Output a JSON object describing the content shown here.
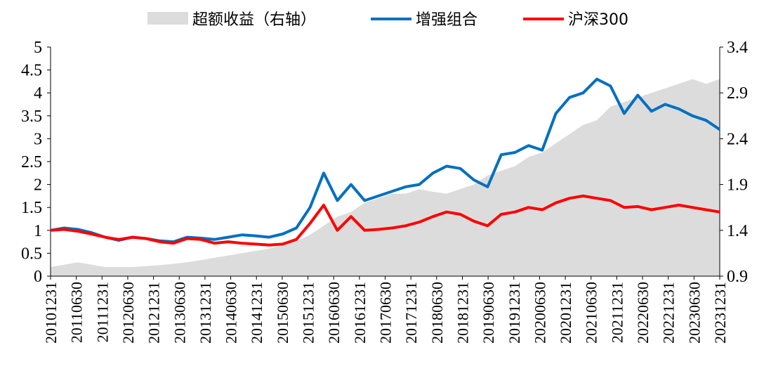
{
  "chart_data": {
    "type": "line",
    "title": "",
    "legend": {
      "position": "top-center",
      "items": [
        {
          "name": "超额收益（右轴）",
          "style": "area",
          "color": "#dcdcdc"
        },
        {
          "name": "增强组合",
          "style": "line",
          "color": "#0070c0"
        },
        {
          "name": "沪深300",
          "style": "line",
          "color": "#ff0000"
        }
      ]
    },
    "x_tick_labels": [
      "20101231",
      "20110630",
      "20111231",
      "20120630",
      "20121231",
      "20130630",
      "20131231",
      "20140630",
      "20141231",
      "20150630",
      "20151231",
      "20160630",
      "20161231",
      "20170630",
      "20171231",
      "20180630",
      "20181231",
      "20190630",
      "20191231",
      "20200630",
      "20201231",
      "20210630",
      "20211231",
      "20220630",
      "20221231",
      "20230630",
      "20231231"
    ],
    "y_left": {
      "min": 0,
      "max": 5,
      "ticks": [
        "0",
        "0.5",
        "1",
        "1.5",
        "2",
        "2.5",
        "3",
        "3.5",
        "4",
        "4.5",
        "5"
      ]
    },
    "y_right": {
      "min": 0.9,
      "max": 3.4,
      "ticks": [
        "0.9",
        "1.4",
        "1.9",
        "2.4",
        "2.9",
        "3.4"
      ]
    },
    "series": [
      {
        "name": "增强组合",
        "axis": "left",
        "color": "#0070c0",
        "points": [
          [
            0,
            1.0
          ],
          [
            1,
            1.05
          ],
          [
            2,
            1.02
          ],
          [
            3,
            0.95
          ],
          [
            4,
            0.85
          ],
          [
            5,
            0.78
          ],
          [
            6,
            0.85
          ],
          [
            7,
            0.82
          ],
          [
            8,
            0.77
          ],
          [
            9,
            0.75
          ],
          [
            10,
            0.85
          ],
          [
            11,
            0.83
          ],
          [
            12,
            0.8
          ],
          [
            13,
            0.85
          ],
          [
            14,
            0.9
          ],
          [
            15,
            0.88
          ],
          [
            16,
            0.85
          ],
          [
            17,
            0.92
          ],
          [
            18,
            1.05
          ],
          [
            19,
            1.5
          ],
          [
            20,
            2.25
          ],
          [
            21,
            1.65
          ],
          [
            22,
            2.0
          ],
          [
            23,
            1.65
          ],
          [
            24,
            1.75
          ],
          [
            25,
            1.85
          ],
          [
            26,
            1.95
          ],
          [
            27,
            2.0
          ],
          [
            28,
            2.25
          ],
          [
            29,
            2.4
          ],
          [
            30,
            2.35
          ],
          [
            31,
            2.1
          ],
          [
            32,
            1.95
          ],
          [
            33,
            2.65
          ],
          [
            34,
            2.7
          ],
          [
            35,
            2.85
          ],
          [
            36,
            2.75
          ],
          [
            37,
            3.55
          ],
          [
            38,
            3.9
          ],
          [
            39,
            4.0
          ],
          [
            40,
            4.3
          ],
          [
            41,
            4.15
          ],
          [
            42,
            3.55
          ],
          [
            43,
            3.95
          ],
          [
            44,
            3.6
          ],
          [
            45,
            3.75
          ],
          [
            46,
            3.65
          ],
          [
            47,
            3.5
          ],
          [
            48,
            3.4
          ],
          [
            49,
            3.2
          ]
        ]
      },
      {
        "name": "沪深300",
        "axis": "left",
        "color": "#ff0000",
        "points": [
          [
            0,
            1.0
          ],
          [
            1,
            1.02
          ],
          [
            2,
            0.98
          ],
          [
            3,
            0.92
          ],
          [
            4,
            0.85
          ],
          [
            5,
            0.8
          ],
          [
            6,
            0.85
          ],
          [
            7,
            0.82
          ],
          [
            8,
            0.75
          ],
          [
            9,
            0.72
          ],
          [
            10,
            0.82
          ],
          [
            11,
            0.8
          ],
          [
            12,
            0.72
          ],
          [
            13,
            0.75
          ],
          [
            14,
            0.72
          ],
          [
            15,
            0.7
          ],
          [
            16,
            0.68
          ],
          [
            17,
            0.7
          ],
          [
            18,
            0.8
          ],
          [
            19,
            1.15
          ],
          [
            20,
            1.55
          ],
          [
            21,
            1.0
          ],
          [
            22,
            1.3
          ],
          [
            23,
            1.0
          ],
          [
            24,
            1.02
          ],
          [
            25,
            1.05
          ],
          [
            26,
            1.1
          ],
          [
            27,
            1.18
          ],
          [
            28,
            1.3
          ],
          [
            29,
            1.4
          ],
          [
            30,
            1.35
          ],
          [
            31,
            1.2
          ],
          [
            32,
            1.1
          ],
          [
            33,
            1.35
          ],
          [
            34,
            1.4
          ],
          [
            35,
            1.5
          ],
          [
            36,
            1.45
          ],
          [
            37,
            1.6
          ],
          [
            38,
            1.7
          ],
          [
            39,
            1.75
          ],
          [
            40,
            1.7
          ],
          [
            41,
            1.65
          ],
          [
            42,
            1.5
          ],
          [
            43,
            1.52
          ],
          [
            44,
            1.45
          ],
          [
            45,
            1.5
          ],
          [
            46,
            1.55
          ],
          [
            47,
            1.5
          ],
          [
            48,
            1.45
          ],
          [
            49,
            1.4
          ]
        ]
      },
      {
        "name": "超额收益（右轴）",
        "axis": "right",
        "color": "#dcdcdc",
        "type": "area",
        "points": [
          [
            0,
            1.0
          ],
          [
            2,
            1.05
          ],
          [
            4,
            1.0
          ],
          [
            6,
            1.0
          ],
          [
            8,
            1.02
          ],
          [
            10,
            1.05
          ],
          [
            12,
            1.1
          ],
          [
            14,
            1.15
          ],
          [
            16,
            1.2
          ],
          [
            18,
            1.28
          ],
          [
            19,
            1.35
          ],
          [
            20,
            1.45
          ],
          [
            21,
            1.55
          ],
          [
            22,
            1.6
          ],
          [
            23,
            1.7
          ],
          [
            24,
            1.75
          ],
          [
            25,
            1.8
          ],
          [
            26,
            1.8
          ],
          [
            27,
            1.85
          ],
          [
            28,
            1.82
          ],
          [
            29,
            1.8
          ],
          [
            30,
            1.85
          ],
          [
            31,
            1.9
          ],
          [
            32,
            2.0
          ],
          [
            33,
            2.05
          ],
          [
            34,
            2.1
          ],
          [
            35,
            2.2
          ],
          [
            36,
            2.25
          ],
          [
            37,
            2.35
          ],
          [
            38,
            2.45
          ],
          [
            39,
            2.55
          ],
          [
            40,
            2.6
          ],
          [
            41,
            2.75
          ],
          [
            42,
            2.8
          ],
          [
            43,
            2.85
          ],
          [
            44,
            2.9
          ],
          [
            45,
            2.95
          ],
          [
            46,
            3.0
          ],
          [
            47,
            3.05
          ],
          [
            48,
            3.0
          ],
          [
            49,
            3.05
          ]
        ]
      }
    ]
  }
}
